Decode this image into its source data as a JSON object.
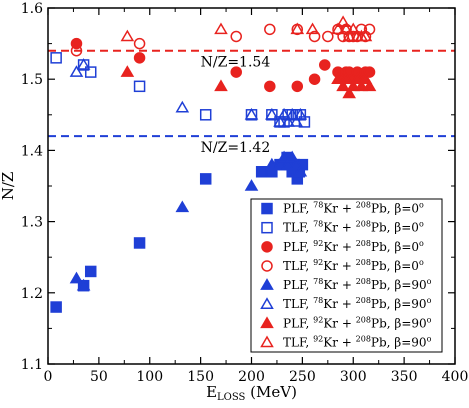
{
  "chart_data": {
    "type": "scatter",
    "xlabel": "E",
    "xlabel_sub": "LOSS",
    "xlabel_unit": " (MeV)",
    "ylabel": "N/Z",
    "xlim": [
      0,
      400
    ],
    "ylim": [
      1.1,
      1.6
    ],
    "xticks": [
      0,
      50,
      100,
      150,
      200,
      250,
      300,
      350,
      400
    ],
    "yticks": [
      1.1,
      1.2,
      1.3,
      1.4,
      1.5,
      1.6
    ],
    "xtick_labels": [
      "0",
      "50",
      "100",
      "150",
      "200",
      "250",
      "300",
      "350",
      "400"
    ],
    "ytick_labels": [
      "1.1",
      "1.2",
      "1.3",
      "1.4",
      "1.5",
      "1.6"
    ],
    "grid": false,
    "legend_position": "bottom-right",
    "reference_lines": [
      {
        "y": 1.54,
        "color": "#e8231f",
        "label": "N/Z=1.54"
      },
      {
        "y": 1.42,
        "color": "#1f3fd6",
        "label": "N/Z=1.42"
      }
    ],
    "series": [
      {
        "legend": {
          "frag": "PLF",
          "proj_mass": "78",
          "proj": "Kr",
          "targ_mass": "208",
          "targ": "Pb",
          "beta": "0"
        },
        "color": "#1f3fd6",
        "marker": "square",
        "filled": true,
        "points": [
          [
            8,
            1.18
          ],
          [
            35,
            1.21
          ],
          [
            42,
            1.23
          ],
          [
            90,
            1.27
          ],
          [
            155,
            1.36
          ],
          [
            210,
            1.37
          ],
          [
            220,
            1.37
          ],
          [
            228,
            1.38
          ],
          [
            232,
            1.38
          ],
          [
            235,
            1.39
          ],
          [
            238,
            1.38
          ],
          [
            240,
            1.37
          ],
          [
            242,
            1.38
          ],
          [
            245,
            1.36
          ],
          [
            247,
            1.37
          ],
          [
            250,
            1.38
          ]
        ]
      },
      {
        "legend": {
          "frag": "TLF",
          "proj_mass": "78",
          "proj": "Kr",
          "targ_mass": "208",
          "targ": "Pb",
          "beta": "0"
        },
        "color": "#1f3fd6",
        "marker": "square",
        "filled": false,
        "points": [
          [
            8,
            1.53
          ],
          [
            35,
            1.52
          ],
          [
            42,
            1.51
          ],
          [
            90,
            1.49
          ],
          [
            155,
            1.45
          ],
          [
            200,
            1.45
          ],
          [
            220,
            1.45
          ],
          [
            228,
            1.44
          ],
          [
            232,
            1.44
          ],
          [
            236,
            1.45
          ],
          [
            240,
            1.45
          ],
          [
            244,
            1.45
          ],
          [
            248,
            1.45
          ],
          [
            252,
            1.44
          ]
        ]
      },
      {
        "legend": {
          "frag": "PLF",
          "proj_mass": "92",
          "proj": "Kr",
          "targ_mass": "208",
          "targ": "Pb",
          "beta": "0"
        },
        "color": "#e8231f",
        "marker": "circle",
        "filled": true,
        "points": [
          [
            28,
            1.55
          ],
          [
            90,
            1.53
          ],
          [
            185,
            1.51
          ],
          [
            218,
            1.49
          ],
          [
            245,
            1.49
          ],
          [
            262,
            1.5
          ],
          [
            272,
            1.52
          ],
          [
            285,
            1.51
          ],
          [
            290,
            1.5
          ],
          [
            293,
            1.51
          ],
          [
            296,
            1.51
          ],
          [
            300,
            1.5
          ],
          [
            304,
            1.51
          ],
          [
            308,
            1.5
          ],
          [
            312,
            1.51
          ],
          [
            316,
            1.51
          ]
        ]
      },
      {
        "legend": {
          "frag": "TLF",
          "proj_mass": "92",
          "proj": "Kr",
          "targ_mass": "208",
          "targ": "Pb",
          "beta": "0"
        },
        "color": "#e8231f",
        "marker": "circle",
        "filled": false,
        "points": [
          [
            28,
            1.54
          ],
          [
            90,
            1.55
          ],
          [
            185,
            1.56
          ],
          [
            218,
            1.57
          ],
          [
            245,
            1.57
          ],
          [
            262,
            1.56
          ],
          [
            275,
            1.56
          ],
          [
            285,
            1.57
          ],
          [
            290,
            1.56
          ],
          [
            293,
            1.57
          ],
          [
            296,
            1.56
          ],
          [
            300,
            1.56
          ],
          [
            304,
            1.56
          ],
          [
            308,
            1.57
          ],
          [
            312,
            1.56
          ],
          [
            316,
            1.57
          ]
        ]
      },
      {
        "legend": {
          "frag": "PLF",
          "proj_mass": "78",
          "proj": "Kr",
          "targ_mass": "208",
          "targ": "Pb",
          "beta": "90"
        },
        "color": "#1f3fd6",
        "marker": "triangle",
        "filled": true,
        "points": [
          [
            28,
            1.22
          ],
          [
            35,
            1.21
          ],
          [
            132,
            1.32
          ],
          [
            200,
            1.35
          ],
          [
            220,
            1.38
          ],
          [
            228,
            1.38
          ],
          [
            232,
            1.39
          ],
          [
            236,
            1.38
          ],
          [
            240,
            1.39
          ],
          [
            244,
            1.38
          ],
          [
            248,
            1.37
          ]
        ]
      },
      {
        "legend": {
          "frag": "TLF",
          "proj_mass": "78",
          "proj": "Kr",
          "targ_mass": "208",
          "targ": "Pb",
          "beta": "90"
        },
        "color": "#1f3fd6",
        "marker": "triangle",
        "filled": false,
        "points": [
          [
            28,
            1.51
          ],
          [
            35,
            1.52
          ],
          [
            132,
            1.46
          ],
          [
            200,
            1.45
          ],
          [
            220,
            1.45
          ],
          [
            228,
            1.44
          ],
          [
            232,
            1.45
          ],
          [
            236,
            1.44
          ],
          [
            240,
            1.45
          ],
          [
            244,
            1.44
          ],
          [
            248,
            1.45
          ]
        ]
      },
      {
        "legend": {
          "frag": "PLF",
          "proj_mass": "92",
          "proj": "Kr",
          "targ_mass": "208",
          "targ": "Pb",
          "beta": "90"
        },
        "color": "#e8231f",
        "marker": "triangle",
        "filled": true,
        "points": [
          [
            78,
            1.51
          ],
          [
            170,
            1.49
          ],
          [
            285,
            1.5
          ],
          [
            290,
            1.49
          ],
          [
            293,
            1.5
          ],
          [
            296,
            1.48
          ],
          [
            300,
            1.49
          ],
          [
            304,
            1.5
          ],
          [
            308,
            1.49
          ],
          [
            312,
            1.5
          ],
          [
            316,
            1.49
          ]
        ]
      },
      {
        "legend": {
          "frag": "TLF",
          "proj_mass": "92",
          "proj": "Kr",
          "targ_mass": "208",
          "targ": "Pb",
          "beta": "90"
        },
        "color": "#e8231f",
        "marker": "triangle",
        "filled": false,
        "points": [
          [
            78,
            1.56
          ],
          [
            170,
            1.57
          ],
          [
            245,
            1.57
          ],
          [
            260,
            1.57
          ],
          [
            285,
            1.57
          ],
          [
            290,
            1.58
          ],
          [
            293,
            1.57
          ],
          [
            296,
            1.56
          ],
          [
            300,
            1.57
          ],
          [
            304,
            1.56
          ],
          [
            308,
            1.56
          ],
          [
            312,
            1.56
          ]
        ]
      }
    ]
  }
}
